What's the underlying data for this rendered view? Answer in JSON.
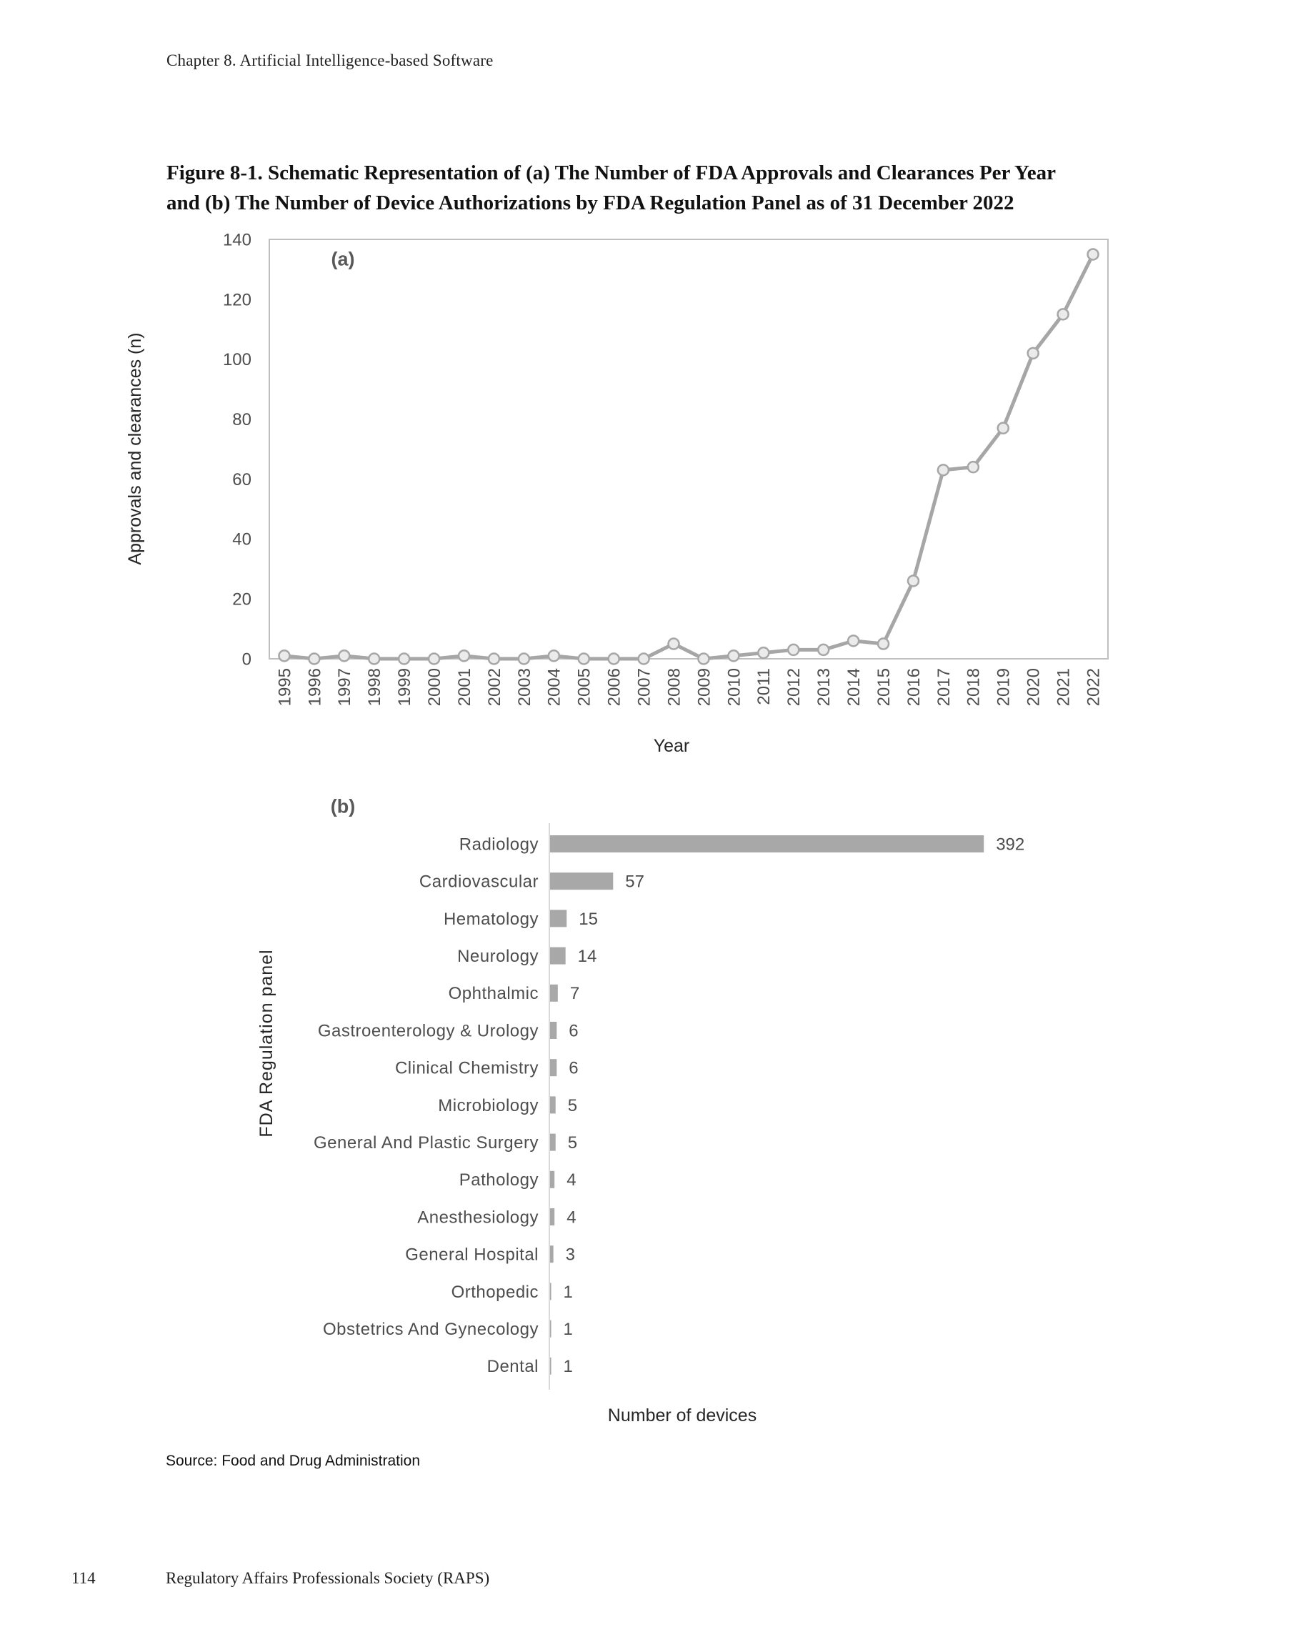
{
  "page": {
    "header": "Chapter 8. Artificial Intelligence-based Software",
    "figure_title": {
      "line1": "Figure 8-1. Schematic Representation of (a) The Number of FDA Approvals and Clearances Per Year",
      "line2": "and (b) The Number of Device Authorizations by FDA Regulation Panel as of 31 December 2022"
    },
    "source_note": "Source: Food and Drug Administration",
    "footer": {
      "page_number": "114",
      "society": "Regulatory Affairs Professionals Society (RAPS)"
    }
  },
  "chart_data": [
    {
      "type": "line",
      "panel_label": "(a)",
      "xlabel": "Year",
      "ylabel": "Approvals and clearances (n)",
      "ylim": [
        0,
        140
      ],
      "yticks": [
        0,
        20,
        40,
        60,
        80,
        100,
        120,
        140
      ],
      "grid": false,
      "legend": "none",
      "x": [
        1995,
        1996,
        1997,
        1998,
        1999,
        2000,
        2001,
        2002,
        2003,
        2004,
        2005,
        2006,
        2007,
        2008,
        2009,
        2010,
        2011,
        2012,
        2013,
        2014,
        2015,
        2016,
        2017,
        2018,
        2019,
        2020,
        2021,
        2022
      ],
      "series": [
        {
          "name": "Approvals and clearances",
          "values": [
            1,
            0,
            1,
            0,
            0,
            0,
            1,
            0,
            0,
            1,
            0,
            0,
            0,
            5,
            0,
            1,
            2,
            3,
            3,
            6,
            5,
            26,
            63,
            64,
            77,
            102,
            115,
            135
          ]
        }
      ]
    },
    {
      "type": "bar",
      "orientation": "horizontal",
      "panel_label": "(b)",
      "xlabel": "Number of devices",
      "ylabel": "FDA Regulation panel",
      "grid": false,
      "value_labels": true,
      "categories": [
        "Radiology",
        "Cardiovascular",
        "Hematology",
        "Neurology",
        "Ophthalmic",
        "Gastroenterology & Urology",
        "Clinical Chemistry",
        "Microbiology",
        "General And Plastic Surgery",
        "Pathology",
        "Anesthesiology",
        "General Hospital",
        "Orthopedic",
        "Obstetrics And Gynecology",
        "Dental"
      ],
      "values": [
        392,
        57,
        15,
        14,
        7,
        6,
        6,
        5,
        5,
        4,
        4,
        3,
        1,
        1,
        1
      ]
    }
  ],
  "colors": {
    "line": "#a6a6a6",
    "marker_fill": "#ebebeb",
    "marker_stroke": "#a6a6a6",
    "plot_frame": "#bfbfbf",
    "axis_line": "#d9d9d9",
    "bar": "#a8a8a8",
    "tick_text": "#4d4d4d",
    "panel_text": "#595959"
  }
}
